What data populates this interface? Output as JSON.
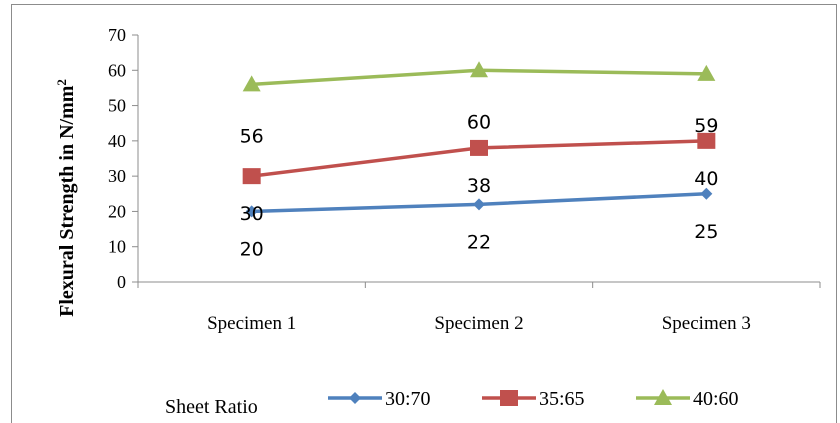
{
  "chart_data": {
    "type": "line",
    "title": "",
    "xlabel": "",
    "ylabel": "Flexural Strength in N/mm",
    "ylabel_superscript": "2",
    "ylim": [
      0,
      70
    ],
    "y_ticks": [
      "0",
      "10",
      "20",
      "30",
      "40",
      "50",
      "60",
      "70"
    ],
    "grid": false,
    "categories": [
      "Specimen 1",
      "Specimen 2",
      "Specimen 3"
    ],
    "legend": {
      "title": "Sheet Ratio",
      "placement": "bottom"
    },
    "series": [
      {
        "name": "30:70",
        "color": "#4f81bd",
        "marker": "diamond",
        "values": [
          20,
          22,
          25
        ],
        "labels": [
          "20",
          "22",
          "25"
        ]
      },
      {
        "name": "35:65",
        "color": "#c0504d",
        "marker": "square",
        "values": [
          30,
          38,
          40
        ],
        "labels": [
          "30",
          "38",
          "40"
        ]
      },
      {
        "name": "40:60",
        "color": "#9bbb59",
        "marker": "triangle",
        "values": [
          56,
          60,
          59
        ],
        "labels": [
          "56",
          "60",
          "59"
        ]
      }
    ]
  }
}
